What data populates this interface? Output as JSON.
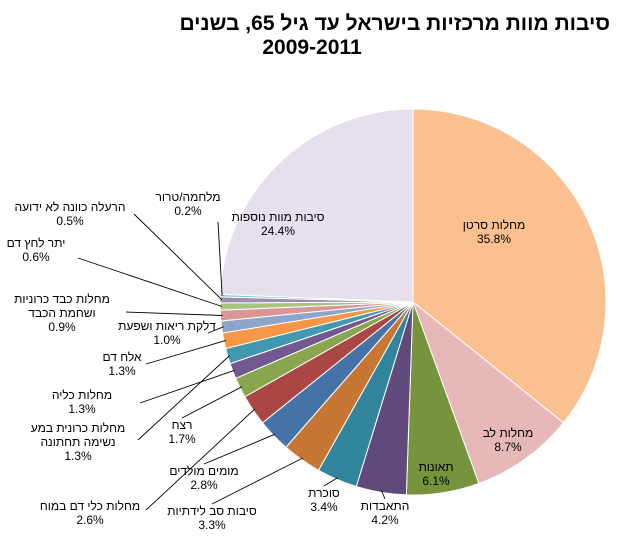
{
  "chart_data": {
    "type": "pie",
    "title": "סיבות מוות מרכזיות בישראל עד גיל 65, בשנים",
    "subtitle": "2009-2011",
    "slices": [
      {
        "label": "מחלות סרטן",
        "value": 35.8,
        "pct": "35.8%",
        "color": "#FAC090"
      },
      {
        "label": "מחלות לב",
        "value": 8.7,
        "pct": "8.7%",
        "color": "#E6B9B8"
      },
      {
        "label": "תאונות",
        "value": 6.1,
        "pct": "6.1%",
        "color": "#77933C"
      },
      {
        "label": "התאבדות",
        "value": 4.2,
        "pct": "4.2%",
        "color": "#604A7B"
      },
      {
        "label": "סוכרת",
        "value": 3.4,
        "pct": "3.4%",
        "color": "#31859C"
      },
      {
        "label": "סיבות סב לידתיות",
        "value": 3.3,
        "pct": "3.3%",
        "color": "#C77634"
      },
      {
        "label": "מומים מולדים",
        "value": 2.8,
        "pct": "2.8%",
        "color": "#4572A7"
      },
      {
        "label": "מחלות כלי דם במוח",
        "value": 2.6,
        "pct": "2.6%",
        "color": "#AA4643"
      },
      {
        "label": "רצח",
        "value": 1.7,
        "pct": "1.7%",
        "color": "#89A54E"
      },
      {
        "label": "מחלות כליה",
        "value": 1.3,
        "pct": "1.3%",
        "color": "#71588F"
      },
      {
        "label": "מחלות כרונית במע נשימה תחתונה",
        "value": 1.3,
        "pct": "1.3%",
        "color": "#4198AF"
      },
      {
        "label": "אלח דם",
        "value": 1.3,
        "pct": "1.3%",
        "color": "#F79646"
      },
      {
        "label": "דלקת ריאות ושפעת",
        "value": 1.0,
        "pct": "1.0%",
        "color": "#8EA5CB"
      },
      {
        "label": "מחלות כבד כרוניות ושחמת הכבד",
        "value": 0.9,
        "pct": "0.9%",
        "color": "#D99694"
      },
      {
        "label": "יתר לחץ דם",
        "value": 0.6,
        "pct": "0.6%",
        "color": "#A9C47F"
      },
      {
        "label": "הרעלה כוונה לא ידועה",
        "value": 0.5,
        "pct": "0.5%",
        "color": "#9D8DB3"
      },
      {
        "label": "מלחמה/טרור",
        "value": 0.2,
        "pct": "0.2%",
        "color": "#7FC6D8"
      },
      {
        "label": "סיבות מוות נוספות",
        "value": 24.4,
        "pct": "24.4%",
        "color": "#E5E0EC"
      }
    ]
  }
}
